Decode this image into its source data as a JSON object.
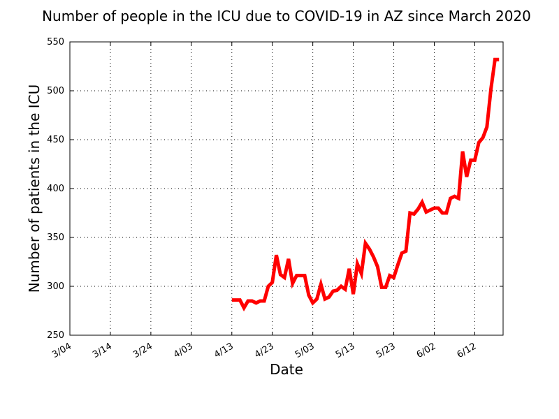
{
  "chart_data": {
    "type": "line",
    "title": "Number of people in the ICU due to COVID-19 in AZ since March 2020",
    "xlabel": "Date",
    "ylabel": "Number of patients in the ICU",
    "x_axis_kind": "date",
    "xlim": [
      "2020-03-04",
      "2020-06-19"
    ],
    "ylim": [
      250,
      550
    ],
    "x_ticks": [
      {
        "date": "2020-03-04",
        "label": "3/04"
      },
      {
        "date": "2020-03-14",
        "label": "3/14"
      },
      {
        "date": "2020-03-24",
        "label": "3/24"
      },
      {
        "date": "2020-04-03",
        "label": "4/03"
      },
      {
        "date": "2020-04-13",
        "label": "4/13"
      },
      {
        "date": "2020-04-23",
        "label": "4/23"
      },
      {
        "date": "2020-05-03",
        "label": "5/03"
      },
      {
        "date": "2020-05-13",
        "label": "5/13"
      },
      {
        "date": "2020-05-23",
        "label": "5/23"
      },
      {
        "date": "2020-06-02",
        "label": "6/02"
      },
      {
        "date": "2020-06-12",
        "label": "6/12"
      }
    ],
    "y_ticks": [
      250,
      300,
      350,
      400,
      450,
      500,
      550
    ],
    "grid": true,
    "line_color": "#ff0000",
    "series": [
      {
        "x": [
          "2020-04-13",
          "2020-04-14",
          "2020-04-15",
          "2020-04-16",
          "2020-04-17",
          "2020-04-18",
          "2020-04-19",
          "2020-04-20",
          "2020-04-21",
          "2020-04-22",
          "2020-04-23",
          "2020-04-24",
          "2020-04-25",
          "2020-04-26",
          "2020-04-27",
          "2020-04-28",
          "2020-04-29",
          "2020-04-30",
          "2020-05-01",
          "2020-05-02",
          "2020-05-03",
          "2020-05-04",
          "2020-05-05",
          "2020-05-06",
          "2020-05-07",
          "2020-05-08",
          "2020-05-09",
          "2020-05-10",
          "2020-05-11",
          "2020-05-12",
          "2020-05-13",
          "2020-05-14",
          "2020-05-15",
          "2020-05-16",
          "2020-05-17",
          "2020-05-18",
          "2020-05-19",
          "2020-05-20",
          "2020-05-21",
          "2020-05-22",
          "2020-05-23",
          "2020-05-24",
          "2020-05-25",
          "2020-05-26",
          "2020-05-27",
          "2020-05-28",
          "2020-05-29",
          "2020-05-30",
          "2020-05-31",
          "2020-06-01",
          "2020-06-02",
          "2020-06-03",
          "2020-06-04",
          "2020-06-05",
          "2020-06-06",
          "2020-06-07",
          "2020-06-08",
          "2020-06-09",
          "2020-06-10",
          "2020-06-11",
          "2020-06-12",
          "2020-06-13",
          "2020-06-14",
          "2020-06-15",
          "2020-06-16",
          "2020-06-17",
          "2020-06-18"
        ],
        "values": [
          286,
          286,
          286,
          278,
          285,
          285,
          283,
          285,
          285,
          300,
          304,
          332,
          312,
          309,
          328,
          303,
          311,
          311,
          311,
          291,
          283,
          287,
          302,
          287,
          289,
          295,
          296,
          300,
          297,
          318,
          292,
          323,
          313,
          344,
          338,
          330,
          320,
          299,
          299,
          311,
          309,
          322,
          334,
          336,
          375,
          374,
          379,
          386,
          376,
          378,
          380,
          380,
          375,
          375,
          390,
          392,
          390,
          438,
          412,
          429,
          429,
          447,
          452,
          463,
          502,
          532,
          532
        ]
      }
    ]
  }
}
